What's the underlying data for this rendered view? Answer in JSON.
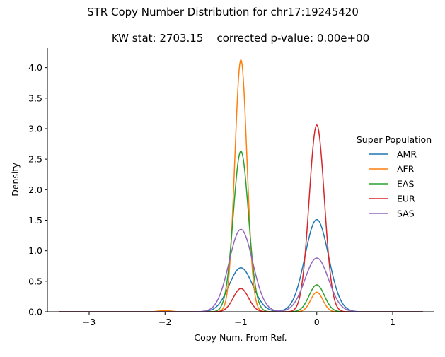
{
  "chart_data": {
    "type": "line",
    "title": "STR Copy Number Distribution for chr17:19245420",
    "subtitle": "KW stat: 2703.15    corrected p-value: 0.00e+00",
    "xlabel": "Copy Num. From Ref.",
    "ylabel": "Density",
    "xlim": [
      -3.55,
      1.55
    ],
    "ylim": [
      0,
      4.32
    ],
    "xticks": [
      -3,
      -2,
      -1,
      0,
      1
    ],
    "xtick_labels": [
      "−3",
      "−2",
      "−1",
      "0",
      "1"
    ],
    "yticks": [
      0.0,
      0.5,
      1.0,
      1.5,
      2.0,
      2.5,
      3.0,
      3.5,
      4.0
    ],
    "ytick_labels": [
      "0.0",
      "0.5",
      "1.0",
      "1.5",
      "2.0",
      "2.5",
      "3.0",
      "3.5",
      "4.0"
    ],
    "grid": false,
    "legend": {
      "title": "Super Population",
      "placement": "right"
    },
    "x_range": [
      -3.4,
      1.4
    ],
    "series": [
      {
        "name": "AMR",
        "color": "#1f77b4",
        "peaks": [
          {
            "x": -1,
            "height": 0.72,
            "sd": 0.155
          },
          {
            "x": 0,
            "height": 1.51,
            "sd": 0.155
          }
        ]
      },
      {
        "name": "AFR",
        "color": "#ff7f0e",
        "peaks": [
          {
            "x": -2,
            "height": 0.02,
            "sd": 0.08
          },
          {
            "x": -1,
            "height": 4.13,
            "sd": 0.08
          },
          {
            "x": 0,
            "height": 0.32,
            "sd": 0.08
          }
        ]
      },
      {
        "name": "EAS",
        "color": "#2ca02c",
        "peaks": [
          {
            "x": -1,
            "height": 2.63,
            "sd": 0.1
          },
          {
            "x": 0,
            "height": 0.44,
            "sd": 0.1
          }
        ]
      },
      {
        "name": "EUR",
        "color": "#d62728",
        "peaks": [
          {
            "x": -1,
            "height": 0.38,
            "sd": 0.1
          },
          {
            "x": 0,
            "height": 3.06,
            "sd": 0.1
          }
        ]
      },
      {
        "name": "SAS",
        "color": "#9467bd",
        "peaks": [
          {
            "x": -1,
            "height": 1.35,
            "sd": 0.155
          },
          {
            "x": 0,
            "height": 0.88,
            "sd": 0.155
          }
        ]
      }
    ]
  }
}
